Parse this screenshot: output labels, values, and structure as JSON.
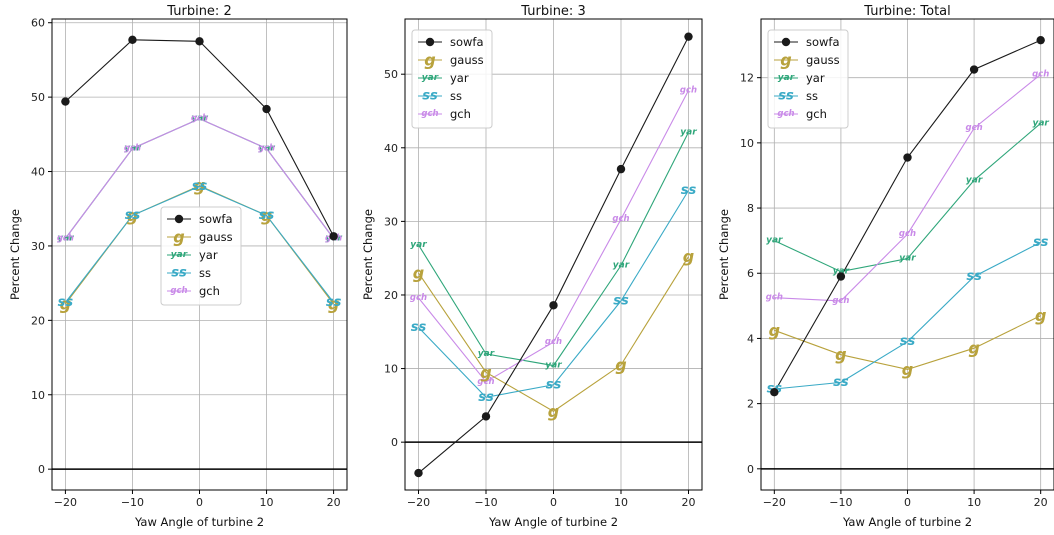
{
  "chart_data": [
    {
      "type": "line",
      "title": "Turbine: 2",
      "xlabel": "Yaw Angle of turbine 2",
      "ylabel": "Percent Change",
      "x": [
        -20,
        -10,
        0,
        10,
        20
      ],
      "xticks": [
        -20,
        -10,
        0,
        10,
        20
      ],
      "yticks": [
        0,
        10,
        20,
        30,
        40,
        50,
        60
      ],
      "xlim": [
        -22,
        22
      ],
      "ylim": [
        -2.8,
        60.5
      ],
      "grid": true,
      "legend_position": "center-right",
      "series": [
        {
          "name": "sowfa",
          "values": [
            49.4,
            57.7,
            57.5,
            48.4,
            31.3
          ]
        },
        {
          "name": "gauss",
          "values": [
            22.2,
            34.1,
            38.1,
            34.1,
            22.2
          ]
        },
        {
          "name": "yar",
          "values": [
            31.0,
            43.1,
            47.1,
            43.1,
            31.0
          ]
        },
        {
          "name": "ss",
          "values": [
            22.4,
            34.1,
            38.0,
            34.1,
            22.4
          ]
        },
        {
          "name": "gch",
          "values": [
            31.0,
            43.1,
            47.1,
            43.1,
            31.0
          ]
        }
      ]
    },
    {
      "type": "line",
      "title": "Turbine: 3",
      "xlabel": "Yaw Angle of turbine 2",
      "ylabel": "Percent Change",
      "x": [
        -20,
        -10,
        0,
        10,
        20
      ],
      "xticks": [
        -20,
        -10,
        0,
        10,
        20
      ],
      "yticks": [
        0,
        10,
        20,
        30,
        40,
        50
      ],
      "xlim": [
        -22,
        22
      ],
      "ylim": [
        -6.5,
        57.5
      ],
      "grid": true,
      "legend_position": "upper-left",
      "series": [
        {
          "name": "sowfa",
          "values": [
            -4.2,
            3.5,
            18.6,
            37.1,
            55.1
          ]
        },
        {
          "name": "gauss",
          "values": [
            23.0,
            9.5,
            4.2,
            10.5,
            25.2
          ]
        },
        {
          "name": "yar",
          "values": [
            26.8,
            12.0,
            10.4,
            24.0,
            42.1
          ]
        },
        {
          "name": "ss",
          "values": [
            15.6,
            6.1,
            7.8,
            19.2,
            34.2
          ]
        },
        {
          "name": "gch",
          "values": [
            19.6,
            8.2,
            13.6,
            30.3,
            47.8
          ]
        }
      ]
    },
    {
      "type": "line",
      "title": "Turbine: Total",
      "xlabel": "Yaw Angle of turbine 2",
      "ylabel": "Percent Change",
      "x": [
        -20,
        -10,
        0,
        10,
        20
      ],
      "xticks": [
        -20,
        -10,
        0,
        10,
        20
      ],
      "yticks": [
        0,
        2,
        4,
        6,
        8,
        10,
        12
      ],
      "xlim": [
        -22,
        22
      ],
      "ylim": [
        -0.65,
        13.8
      ],
      "grid": true,
      "legend_position": "upper-left",
      "series": [
        {
          "name": "sowfa",
          "values": [
            2.35,
            5.9,
            9.55,
            12.25,
            13.15
          ]
        },
        {
          "name": "gauss",
          "values": [
            4.25,
            3.5,
            3.05,
            3.7,
            4.7
          ]
        },
        {
          "name": "yar",
          "values": [
            7.0,
            6.05,
            6.45,
            8.85,
            10.6
          ]
        },
        {
          "name": "ss",
          "values": [
            2.45,
            2.65,
            3.9,
            5.9,
            6.95
          ]
        },
        {
          "name": "gch",
          "values": [
            5.25,
            5.15,
            7.2,
            10.45,
            12.1
          ]
        }
      ]
    }
  ],
  "series_styles": {
    "sowfa": {
      "color": "#1a1a1a",
      "marker": "circle",
      "glyph": ""
    },
    "gauss": {
      "color": "#b8a23c",
      "marker": "text",
      "glyph": "g"
    },
    "yar": {
      "color": "#2fa67a",
      "marker": "text",
      "glyph": "yar"
    },
    "ss": {
      "color": "#3aaac6",
      "marker": "text",
      "glyph": "ss"
    },
    "gch": {
      "color": "#c98ae8",
      "marker": "text",
      "glyph": "gch"
    }
  }
}
